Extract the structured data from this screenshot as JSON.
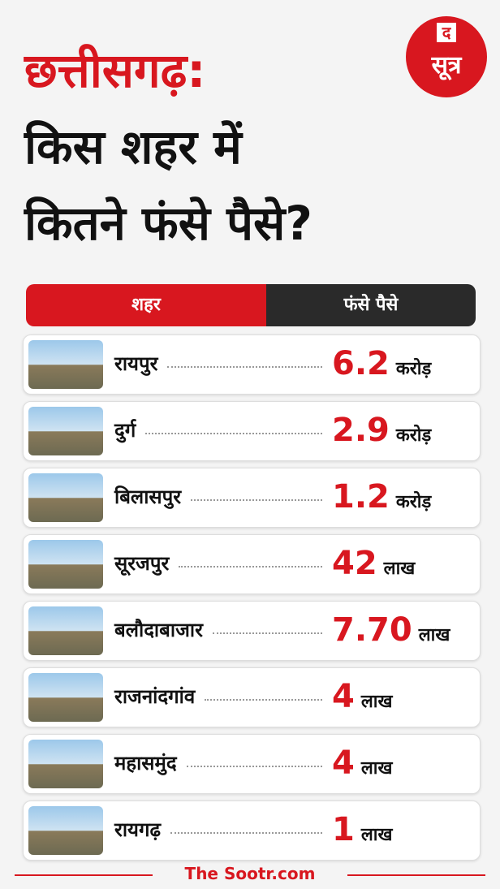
{
  "header": {
    "title_line1": "छत्तीसगढ़:",
    "title_line2": "किस शहर में",
    "title_line3": "कितने फंसे पैसे?",
    "logo_top": "द",
    "logo_bottom": "सूत्र"
  },
  "table": {
    "columns": [
      "शहर",
      "फंसे पैसे"
    ],
    "rows": [
      {
        "city": "रायपुर",
        "amount": "6.2",
        "unit": "करोड़"
      },
      {
        "city": "दुर्ग",
        "amount": "2.9",
        "unit": "करोड़"
      },
      {
        "city": "बिलासपुर",
        "amount": "1.2",
        "unit": "करोड़"
      },
      {
        "city": "सूरजपुर",
        "amount": "42",
        "unit": "लाख"
      },
      {
        "city": "बलौदाबाजार",
        "amount": "7.70",
        "unit": "लाख"
      },
      {
        "city": "राजनांदगांव",
        "amount": "4",
        "unit": "लाख"
      },
      {
        "city": "महासमुंद",
        "amount": "4",
        "unit": "लाख"
      },
      {
        "city": "रायगढ़",
        "amount": "1",
        "unit": "लाख"
      }
    ]
  },
  "footer": "The Sootr.com"
}
